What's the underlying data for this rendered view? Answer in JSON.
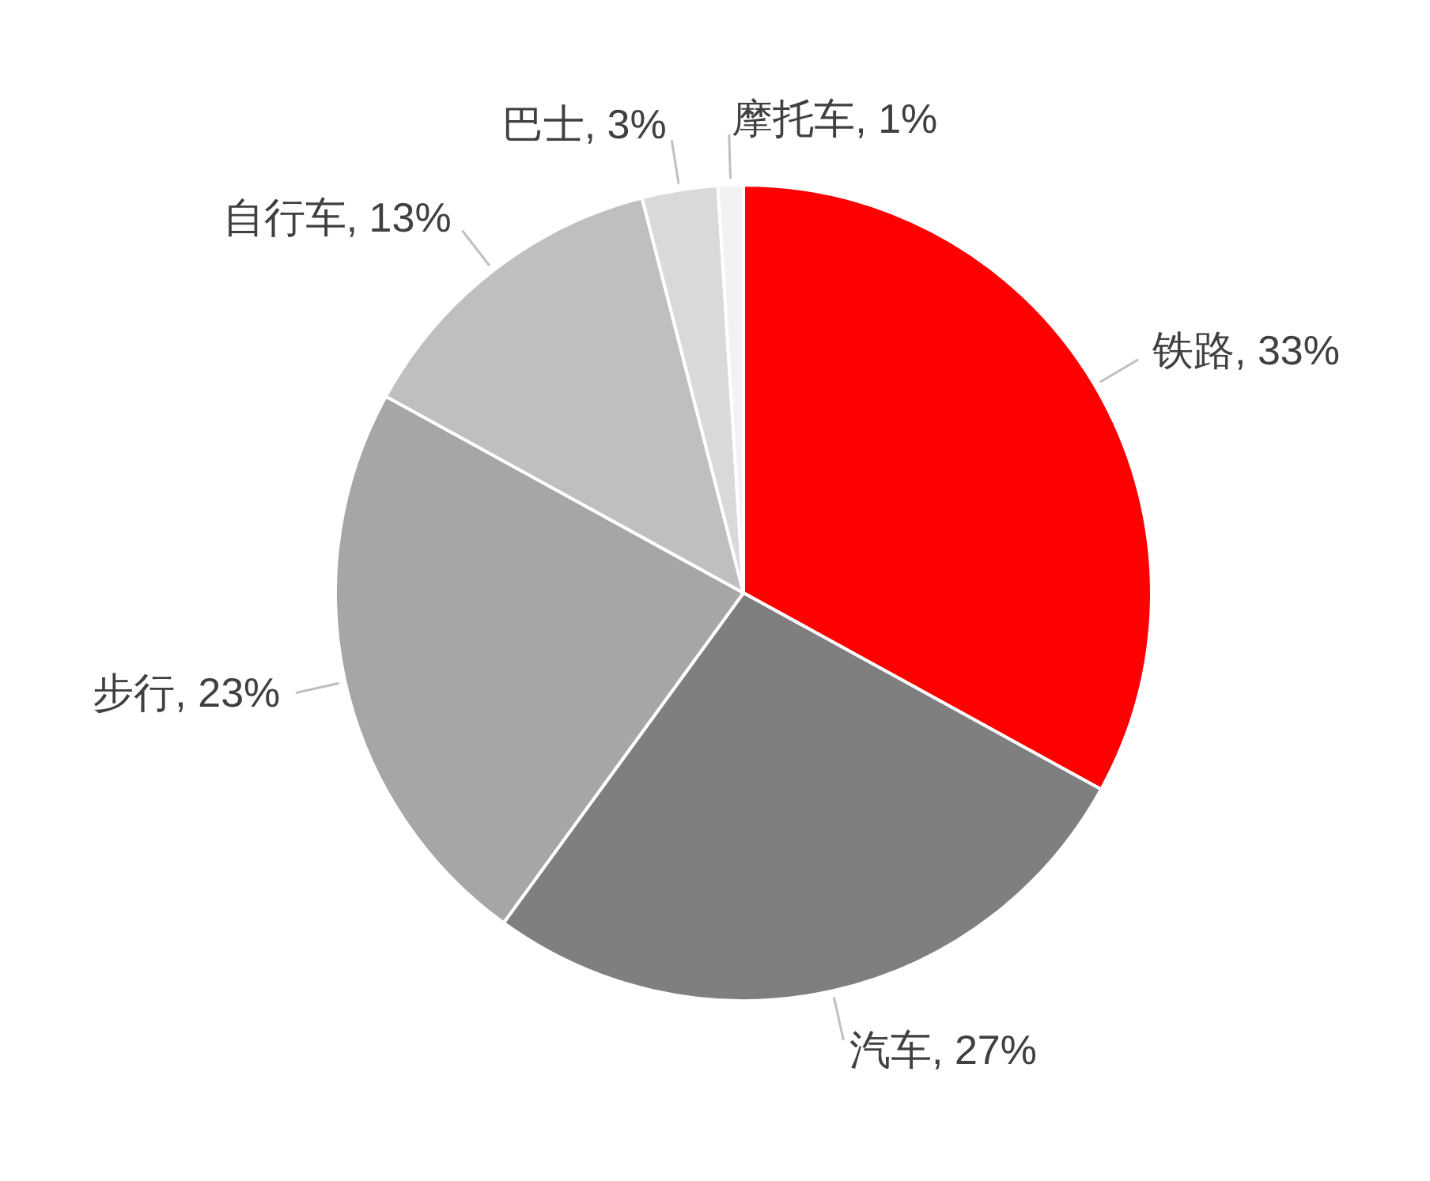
{
  "chart_data": {
    "type": "pie",
    "categories": [
      "铁路",
      "汽车",
      "步行",
      "自行车",
      "巴士",
      "摩托车"
    ],
    "values": [
      33,
      27,
      23,
      13,
      3,
      1
    ],
    "colors": [
      "#ff0000",
      "#7f7f7f",
      "#a6a6a6",
      "#bfbfbf",
      "#d9d9d9",
      "#f2f2f2"
    ],
    "value_labels": [
      ", 33%",
      ", 27%",
      ", 23%",
      ", 13%",
      ", 3%",
      ", 1%"
    ],
    "legend": false
  }
}
